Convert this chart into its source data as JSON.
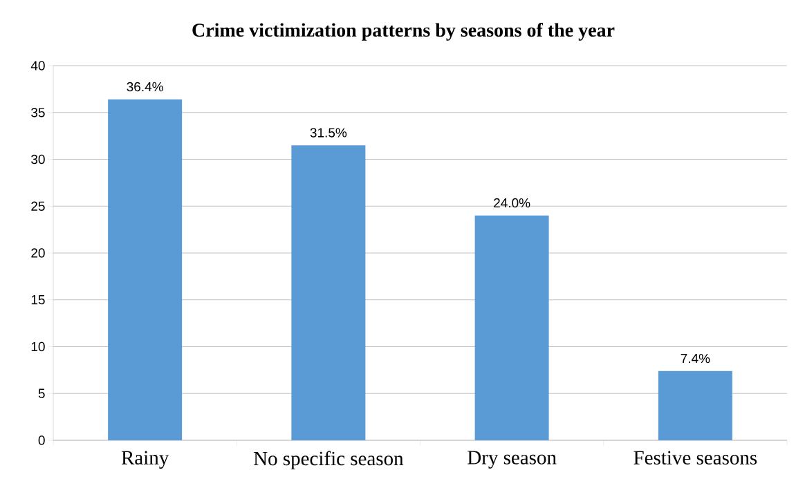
{
  "chart_data": {
    "type": "bar",
    "title": "Crime victimization patterns by seasons of the year",
    "categories": [
      "Rainy",
      "No specific season",
      "Dry season",
      "Festive seasons"
    ],
    "values": [
      36.4,
      31.5,
      24.0,
      7.4
    ],
    "value_labels": [
      "36.4%",
      "31.5%",
      "24.0%",
      "7.4%"
    ],
    "color": "#5b9bd5",
    "ylim": [
      0,
      40
    ],
    "yticks": [
      0,
      5,
      10,
      15,
      20,
      25,
      30,
      35,
      40
    ],
    "grid": "y"
  }
}
